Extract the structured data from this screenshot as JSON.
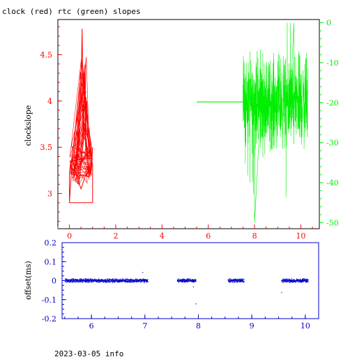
{
  "title": "clock (red) rtc (green) slopes",
  "footer": "2023-03-05 info",
  "colors": {
    "clock": "#ff0000",
    "rtc": "#00ee00",
    "offset": "#0000cc",
    "axis": "#000000"
  },
  "chart_data": [
    {
      "type": "line",
      "title": "clock (red) rtc (green) slopes",
      "xlabel": "",
      "ylabel": "clockslope",
      "xlim": [
        -0.5,
        10.8
      ],
      "x_ticks": [
        0,
        2,
        4,
        6,
        8,
        10
      ],
      "ylim": [
        2.62,
        4.88
      ],
      "y_ticks": [
        3,
        3.5,
        4,
        4.5
      ],
      "y2label": "",
      "y2lim": [
        -51.5,
        0.8
      ],
      "y2_ticks": [
        0,
        -10,
        -20,
        -30,
        -40,
        -50
      ],
      "series": [
        {
          "name": "clock",
          "axis": "left",
          "points": [
            [
              0,
              2.9
            ],
            [
              0,
              3.2
            ],
            [
              0.05,
              3.35
            ],
            [
              0.1,
              3.28
            ],
            [
              0.2,
              3.25
            ],
            [
              0.3,
              3.35
            ],
            [
              0.4,
              3.55
            ],
            [
              0.5,
              4.1
            ],
            [
              0.55,
              4.78
            ],
            [
              0.6,
              3.6
            ],
            [
              0.65,
              4.3
            ],
            [
              0.7,
              3.7
            ],
            [
              0.75,
              4.0
            ],
            [
              0.8,
              3.6
            ],
            [
              0.85,
              3.7
            ],
            [
              0.9,
              3.5
            ],
            [
              0.95,
              3.4
            ],
            [
              1.0,
              3.3
            ],
            [
              1.0,
              2.9
            ],
            [
              0,
              2.9
            ],
            [
              0.1,
              3.3
            ],
            [
              0.25,
              3.15
            ],
            [
              0.4,
              3.1
            ],
            [
              0.5,
              3.3
            ],
            [
              0.6,
              3.75
            ],
            [
              0.7,
              3.55
            ],
            [
              0.8,
              3.35
            ],
            [
              0.9,
              3.2
            ],
            [
              1.0,
              3.5
            ],
            [
              0.95,
              3.25
            ],
            [
              0.7,
              3.2
            ],
            [
              0.5,
              3.05
            ],
            [
              0.3,
              3.2
            ],
            [
              0.15,
              3.35
            ],
            [
              0,
              3.35
            ],
            [
              0.5,
              3.37
            ],
            [
              1.0,
              3.38
            ]
          ]
        },
        {
          "name": "rtc",
          "axis": "right",
          "flat": {
            "x_start": 5.5,
            "x_end": 7.5,
            "y": -19.8
          },
          "noise": {
            "x_start": 7.5,
            "x_end": 10.3,
            "center": -20,
            "range": [
              -50,
              0
            ],
            "label_outliers": [
              -50,
              0
            ]
          }
        }
      ]
    },
    {
      "type": "scatter",
      "ylabel": "offset(ms)",
      "xlim": [
        5.45,
        10.25
      ],
      "x_ticks": [
        6,
        7,
        8,
        9,
        10
      ],
      "ylim": [
        -0.2,
        0.2
      ],
      "y_ticks": [
        0.2,
        0.1,
        0,
        -0.1,
        -0.2
      ],
      "segments": [
        {
          "x_start": 5.5,
          "x_end": 7.05
        },
        {
          "x_start": 7.6,
          "x_end": 7.95
        },
        {
          "x_start": 8.55,
          "x_end": 8.85
        },
        {
          "x_start": 9.55,
          "x_end": 10.05
        }
      ],
      "outliers": [
        [
          6.95,
          0.045
        ],
        [
          7.95,
          -0.12
        ],
        [
          9.55,
          -0.06
        ],
        [
          7.9,
          -0.03
        ]
      ]
    }
  ]
}
